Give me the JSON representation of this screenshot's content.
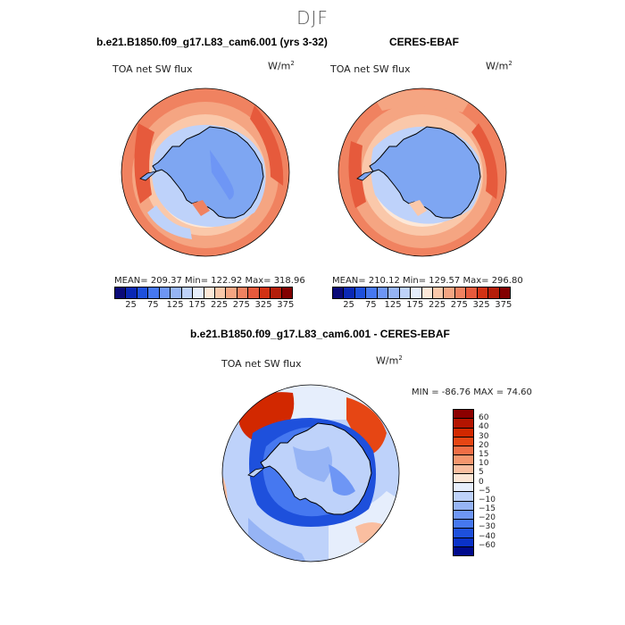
{
  "season": "DJF",
  "panels": {
    "model": {
      "title": "b.e21.B1850.f09_g17.L83_cam6.001 (yrs 3-32)",
      "variable": "TOA net SW flux",
      "units_base": "W/m",
      "units_exp": "2",
      "mean": "209.37",
      "min": "122.92",
      "max": "318.96",
      "stats_text": "MEAN= 209.37   Min= 122.92   Max= 318.96"
    },
    "obs": {
      "title": "CERES-EBAF",
      "variable": "TOA net SW flux",
      "units_base": "W/m",
      "units_exp": "2",
      "mean": "210.12",
      "min": "129.57",
      "max": "296.80",
      "stats_text": "MEAN= 210.12   Min= 129.57   Max= 296.80"
    },
    "diff": {
      "title": "b.e21.B1850.f09_g17.L83_cam6.001 - CERES-EBAF",
      "variable": "TOA net SW flux",
      "units_base": "W/m",
      "units_exp": "2",
      "min": "-86.76",
      "max": "74.60",
      "stats_text": "MIN = -86.76 MAX =  74.60"
    }
  },
  "colorbar_main": {
    "labels": [
      "25",
      "75",
      "125",
      "175",
      "225",
      "275",
      "325",
      "375"
    ],
    "colors": [
      "#0a0a78",
      "#0a28b4",
      "#1e50dc",
      "#4678f0",
      "#6e96f5",
      "#96b4f5",
      "#bed2fa",
      "#e6eefc",
      "#fde8d8",
      "#fac8aa",
      "#f5a582",
      "#f08260",
      "#e65a3c",
      "#d23214",
      "#b41e0a",
      "#820000"
    ]
  },
  "colorbar_diff": {
    "labels": [
      "60",
      "40",
      "30",
      "20",
      "15",
      "10",
      "5",
      "0",
      "−5",
      "−10",
      "−15",
      "−20",
      "−30",
      "−40",
      "−60"
    ],
    "colors": [
      "#8c0000",
      "#b41400",
      "#d22800",
      "#e64614",
      "#f06e46",
      "#f5966e",
      "#fabea0",
      "#fde6d6",
      "#e6eefc",
      "#bed2fa",
      "#96b4f5",
      "#6e96f5",
      "#4678f0",
      "#1e50dc",
      "#0a32c8",
      "#000a8c"
    ]
  }
}
